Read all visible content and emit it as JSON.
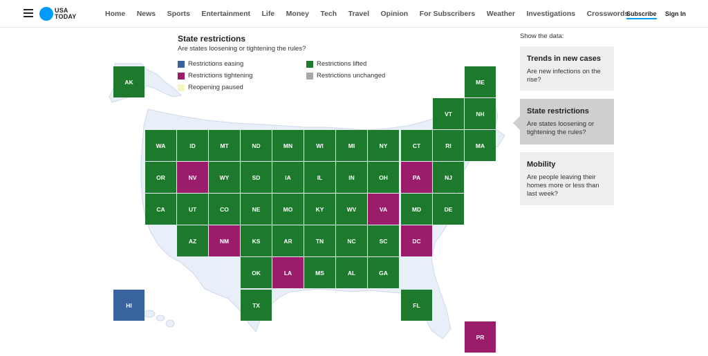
{
  "header": {
    "logo_line1": "USA",
    "logo_line2": "TODAY",
    "nav": [
      "Home",
      "News",
      "Sports",
      "Entertainment",
      "Life",
      "Money",
      "Tech",
      "Travel",
      "Opinion",
      "For Subscribers",
      "Weather",
      "Investigations",
      "Crosswords"
    ],
    "subscribe": "Subscribe",
    "sign_in": "Sign In"
  },
  "legend": {
    "title": "State restrictions",
    "subtitle": "Are states loosening or tightening the rules?",
    "items": [
      {
        "label": "Restrictions easing",
        "color": "#3a64a0"
      },
      {
        "label": "Restrictions lifted",
        "color": "#1d7a2d"
      },
      {
        "label": "Restrictions tightening",
        "color": "#9b1c6b"
      },
      {
        "label": "Restrictions unchanged",
        "color": "#a8a8a8"
      },
      {
        "label": "Reopening paused",
        "color": "#f8f6c0"
      }
    ]
  },
  "states": [
    {
      "abbr": "AK",
      "status": "lifted"
    },
    {
      "abbr": "ME",
      "status": "lifted"
    },
    {
      "abbr": "VT",
      "status": "lifted"
    },
    {
      "abbr": "NH",
      "status": "lifted"
    },
    {
      "abbr": "WA",
      "status": "lifted"
    },
    {
      "abbr": "ID",
      "status": "lifted"
    },
    {
      "abbr": "MT",
      "status": "lifted"
    },
    {
      "abbr": "ND",
      "status": "lifted"
    },
    {
      "abbr": "MN",
      "status": "lifted"
    },
    {
      "abbr": "WI",
      "status": "lifted"
    },
    {
      "abbr": "MI",
      "status": "lifted"
    },
    {
      "abbr": "NY",
      "status": "lifted"
    },
    {
      "abbr": "CT",
      "status": "lifted"
    },
    {
      "abbr": "RI",
      "status": "lifted"
    },
    {
      "abbr": "MA",
      "status": "lifted"
    },
    {
      "abbr": "OR",
      "status": "lifted"
    },
    {
      "abbr": "NV",
      "status": "tightening"
    },
    {
      "abbr": "WY",
      "status": "lifted"
    },
    {
      "abbr": "SD",
      "status": "lifted"
    },
    {
      "abbr": "IA",
      "status": "lifted"
    },
    {
      "abbr": "IL",
      "status": "lifted"
    },
    {
      "abbr": "IN",
      "status": "lifted"
    },
    {
      "abbr": "OH",
      "status": "lifted"
    },
    {
      "abbr": "PA",
      "status": "tightening"
    },
    {
      "abbr": "NJ",
      "status": "lifted"
    },
    {
      "abbr": "CA",
      "status": "lifted"
    },
    {
      "abbr": "UT",
      "status": "lifted"
    },
    {
      "abbr": "CO",
      "status": "lifted"
    },
    {
      "abbr": "NE",
      "status": "lifted"
    },
    {
      "abbr": "MO",
      "status": "lifted"
    },
    {
      "abbr": "KY",
      "status": "lifted"
    },
    {
      "abbr": "WV",
      "status": "lifted"
    },
    {
      "abbr": "VA",
      "status": "tightening"
    },
    {
      "abbr": "MD",
      "status": "lifted"
    },
    {
      "abbr": "DE",
      "status": "lifted"
    },
    {
      "abbr": "AZ",
      "status": "lifted"
    },
    {
      "abbr": "NM",
      "status": "tightening"
    },
    {
      "abbr": "KS",
      "status": "lifted"
    },
    {
      "abbr": "AR",
      "status": "lifted"
    },
    {
      "abbr": "TN",
      "status": "lifted"
    },
    {
      "abbr": "NC",
      "status": "lifted"
    },
    {
      "abbr": "SC",
      "status": "lifted"
    },
    {
      "abbr": "DC",
      "status": "tightening"
    },
    {
      "abbr": "OK",
      "status": "lifted"
    },
    {
      "abbr": "LA",
      "status": "tightening"
    },
    {
      "abbr": "MS",
      "status": "lifted"
    },
    {
      "abbr": "AL",
      "status": "lifted"
    },
    {
      "abbr": "GA",
      "status": "lifted"
    },
    {
      "abbr": "HI",
      "status": "easing"
    },
    {
      "abbr": "TX",
      "status": "lifted"
    },
    {
      "abbr": "FL",
      "status": "lifted"
    },
    {
      "abbr": "PR",
      "status": "tightening"
    }
  ],
  "status_colors": {
    "easing": "#3a64a0",
    "lifted": "#1d7a2d",
    "tightening": "#9b1c6b",
    "unchanged": "#a8a8a8",
    "paused": "#f8f6c0"
  },
  "sidebar": {
    "label": "Show the data:",
    "cards": [
      {
        "title": "Trends in new cases",
        "description": "Are new infections on the rise?",
        "active": false
      },
      {
        "title": "State restrictions",
        "description": "Are states loosening or tightening the rules?",
        "active": true
      },
      {
        "title": "Mobility",
        "description": "Are people leaving their homes more or less than last week?",
        "active": false
      }
    ]
  }
}
